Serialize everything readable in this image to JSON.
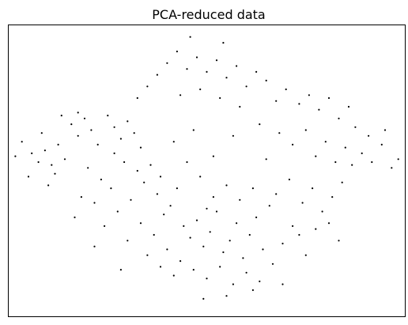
{
  "chart_data": {
    "type": "scatter",
    "title": "PCA-reduced data",
    "xlabel": "",
    "ylabel": "",
    "show_ticks": false,
    "grid": false,
    "xlim": [
      -6,
      6
    ],
    "ylim": [
      -5,
      5
    ],
    "series": [
      {
        "marker_color": "#000000",
        "points": [
          [
            -5.6,
            1.0
          ],
          [
            -5.3,
            0.6
          ],
          [
            -5.1,
            0.3
          ],
          [
            -4.9,
            0.7
          ],
          [
            -4.7,
            0.2
          ],
          [
            -5.4,
            -0.2
          ],
          [
            -4.8,
            -0.5
          ],
          [
            -4.5,
            0.9
          ],
          [
            -4.3,
            0.4
          ],
          [
            -4.1,
            1.6
          ],
          [
            -3.9,
            1.2
          ],
          [
            -3.7,
            1.8
          ],
          [
            -3.5,
            1.4
          ],
          [
            -3.3,
            0.9
          ],
          [
            -3.6,
            0.1
          ],
          [
            -3.2,
            -0.3
          ],
          [
            -3.0,
            1.9
          ],
          [
            -2.8,
            1.5
          ],
          [
            -2.6,
            1.1
          ],
          [
            -2.4,
            1.7
          ],
          [
            -2.2,
            1.3
          ],
          [
            -2.0,
            0.8
          ],
          [
            -2.5,
            0.3
          ],
          [
            -2.9,
            -0.6
          ],
          [
            -3.4,
            -1.1
          ],
          [
            -3.8,
            -0.9
          ],
          [
            -4.0,
            -1.6
          ],
          [
            -3.1,
            -1.9
          ],
          [
            -2.7,
            -1.4
          ],
          [
            -2.3,
            -1.0
          ],
          [
            -1.9,
            -0.4
          ],
          [
            -1.7,
            0.2
          ],
          [
            -1.5,
            -0.8
          ],
          [
            -1.3,
            -1.5
          ],
          [
            -1.1,
            -1.2
          ],
          [
            -0.9,
            -0.6
          ],
          [
            -0.7,
            -1.9
          ],
          [
            -0.5,
            -2.3
          ],
          [
            -0.3,
            -1.7
          ],
          [
            -0.1,
            -2.6
          ],
          [
            0.1,
            -2.1
          ],
          [
            0.3,
            -1.4
          ],
          [
            0.5,
            -2.8
          ],
          [
            0.7,
            -2.4
          ],
          [
            0.9,
            -1.8
          ],
          [
            1.1,
            -3.0
          ],
          [
            1.3,
            -2.2
          ],
          [
            1.5,
            -1.6
          ],
          [
            1.7,
            -2.7
          ],
          [
            1.9,
            -1.2
          ],
          [
            -0.8,
            -3.1
          ],
          [
            -0.4,
            -3.4
          ],
          [
            0.0,
            -3.7
          ],
          [
            0.4,
            -3.3
          ],
          [
            0.8,
            -3.9
          ],
          [
            1.2,
            -3.5
          ],
          [
            1.6,
            -3.8
          ],
          [
            2.0,
            -3.2
          ],
          [
            2.3,
            -2.5
          ],
          [
            2.6,
            -1.9
          ],
          [
            -1.2,
            -2.7
          ],
          [
            -1.6,
            -2.2
          ],
          [
            -2.0,
            -1.8
          ],
          [
            -2.4,
            -2.4
          ],
          [
            -1.0,
            -3.6
          ],
          [
            -1.4,
            -3.3
          ],
          [
            0.2,
            -0.9
          ],
          [
            0.6,
            -0.5
          ],
          [
            1.0,
            -1.0
          ],
          [
            1.4,
            -0.6
          ],
          [
            -0.2,
            -0.2
          ],
          [
            -0.6,
            0.3
          ],
          [
            0.2,
            0.5
          ],
          [
            -1.8,
            -2.9
          ],
          [
            2.1,
            -0.8
          ],
          [
            2.5,
            -0.3
          ],
          [
            2.9,
            -1.1
          ],
          [
            3.2,
            -0.6
          ],
          [
            3.5,
            -1.4
          ],
          [
            3.8,
            -0.9
          ],
          [
            4.1,
            -0.4
          ],
          [
            3.3,
            -2.0
          ],
          [
            3.7,
            -1.8
          ],
          [
            4.4,
            0.2
          ],
          [
            4.7,
            0.6
          ],
          [
            5.0,
            0.3
          ],
          [
            5.3,
            0.9
          ],
          [
            5.6,
            0.1
          ],
          [
            4.9,
            1.2
          ],
          [
            4.5,
            1.5
          ],
          [
            4.2,
            0.8
          ],
          [
            3.9,
            0.3
          ],
          [
            3.6,
            1.0
          ],
          [
            4.0,
            1.8
          ],
          [
            4.3,
            2.2
          ],
          [
            3.7,
            2.5
          ],
          [
            3.4,
            2.1
          ],
          [
            3.1,
            2.6
          ],
          [
            2.8,
            2.3
          ],
          [
            3.0,
            1.4
          ],
          [
            2.6,
            0.9
          ],
          [
            3.3,
            0.5
          ],
          [
            2.4,
            2.8
          ],
          [
            2.1,
            2.4
          ],
          [
            1.8,
            3.1
          ],
          [
            1.5,
            3.4
          ],
          [
            1.2,
            2.9
          ],
          [
            0.9,
            3.6
          ],
          [
            0.6,
            3.2
          ],
          [
            0.3,
            3.8
          ],
          [
            0.0,
            3.4
          ],
          [
            -0.3,
            3.9
          ],
          [
            -0.6,
            3.5
          ],
          [
            -0.9,
            4.1
          ],
          [
            -1.2,
            3.7
          ],
          [
            -1.5,
            3.3
          ],
          [
            -0.2,
            2.8
          ],
          [
            0.4,
            2.5
          ],
          [
            1.0,
            2.2
          ],
          [
            -0.8,
            2.6
          ],
          [
            -1.8,
            2.9
          ],
          [
            -2.1,
            2.5
          ],
          [
            -1.0,
            1.0
          ],
          [
            -0.4,
            1.4
          ],
          [
            0.8,
            1.2
          ],
          [
            1.6,
            1.6
          ],
          [
            2.2,
            1.3
          ],
          [
            -2.8,
            0.6
          ],
          [
            -4.6,
            -0.1
          ],
          [
            -5.0,
            1.3
          ],
          [
            -4.4,
            1.9
          ],
          [
            -3.9,
            2.0
          ],
          [
            1.4,
            -4.1
          ],
          [
            0.6,
            -4.3
          ],
          [
            -0.1,
            -4.4
          ],
          [
            2.3,
            -3.9
          ],
          [
            -2.6,
            -3.4
          ],
          [
            -3.4,
            -2.6
          ],
          [
            3.0,
            -2.9
          ],
          [
            4.0,
            -2.4
          ],
          [
            5.4,
            1.4
          ],
          [
            5.8,
            0.4
          ],
          [
            -5.8,
            0.5
          ],
          [
            -0.5,
            4.6
          ],
          [
            0.5,
            4.4
          ],
          [
            -1.4,
            -0.2
          ],
          [
            1.8,
            0.4
          ],
          [
            2.8,
            -2.2
          ],
          [
            -2.1,
            0.0
          ],
          [
            0.0,
            -1.3
          ]
        ]
      }
    ]
  }
}
